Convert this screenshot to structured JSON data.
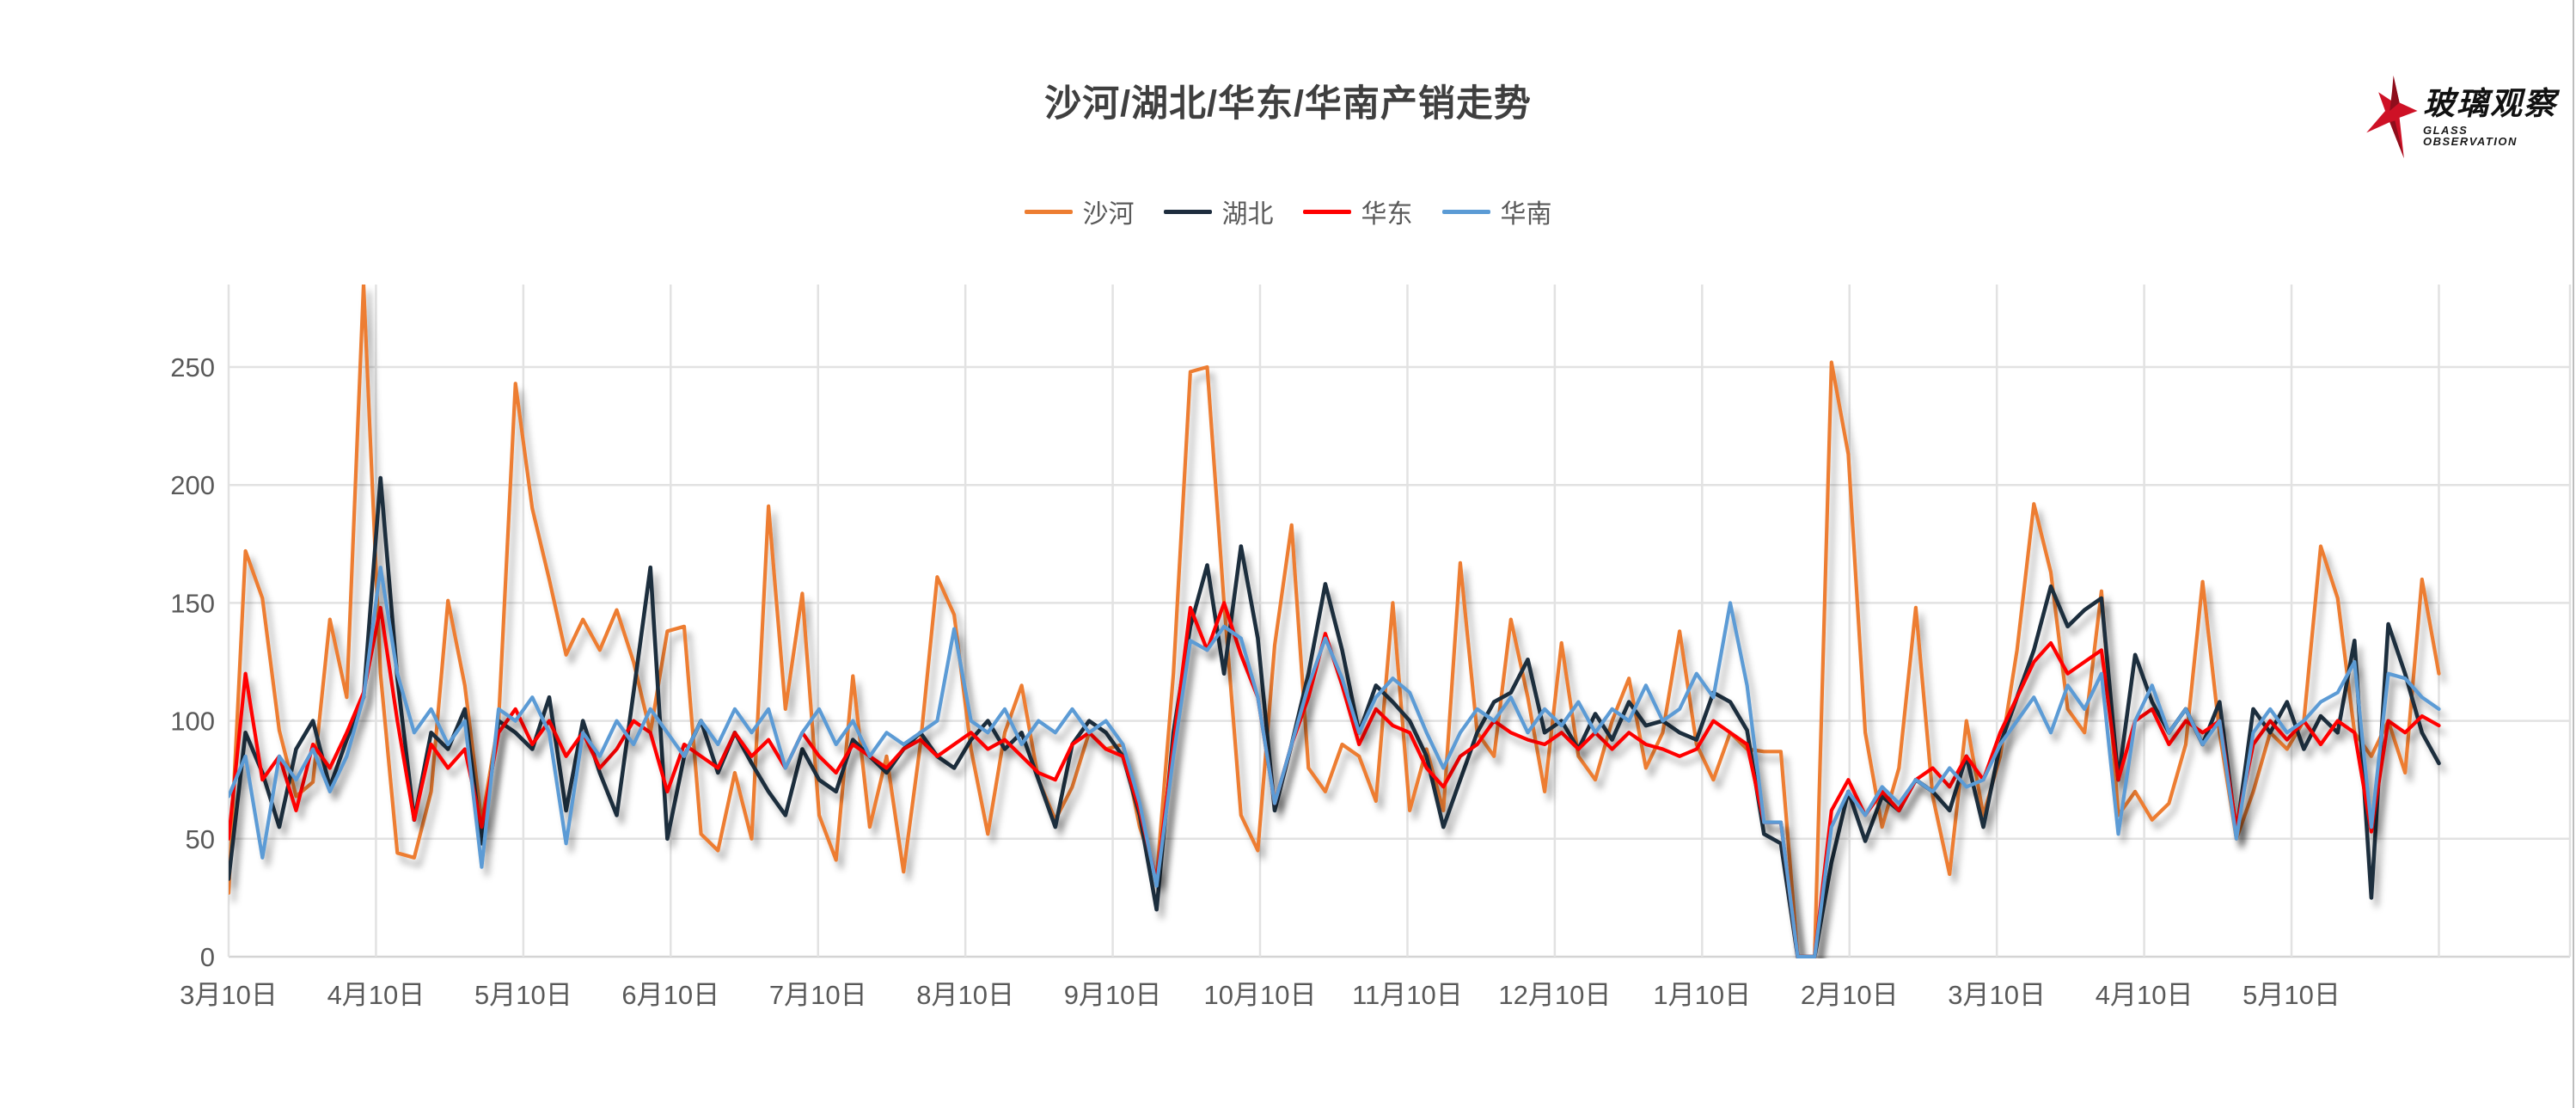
{
  "chart": {
    "title": "沙河/湖北/华东/华南产销走势"
  },
  "logo": {
    "text": "玻璃观察",
    "subtext": "GLASS OBSERVATION",
    "star_color": "#ce1126",
    "star_shade_color": "#8e0e1c"
  },
  "chart_data": {
    "type": "line",
    "title": "沙河/湖北/华东/华南产销走势",
    "xlabel": "",
    "ylabel": "",
    "grid": true,
    "legend_position": "top",
    "ylim": [
      0,
      285
    ],
    "yticks": [
      "0",
      "50",
      "100",
      "150",
      "200",
      "250"
    ],
    "x_tick_labels": [
      "3月10日",
      "4月10日",
      "5月10日",
      "6月10日",
      "7月10日",
      "8月10日",
      "9月10日",
      "10月10日",
      "11月10日",
      "12月10日",
      "1月10日",
      "2月10日",
      "3月10日",
      "4月10日",
      "5月10日"
    ],
    "colors": {
      "grid": "#e2e2e2",
      "axis": "#d4d4d4",
      "tick_text": "#595959",
      "title_text": "#3f3f3f"
    },
    "points_per_series": 132,
    "series": [
      {
        "name": "沙河",
        "color": "#ED7D31",
        "values": [
          27,
          172,
          152,
          96,
          68,
          74,
          143,
          110,
          285,
          120,
          44,
          42,
          70,
          151,
          115,
          57,
          100,
          243,
          190,
          160,
          128,
          143,
          130,
          147,
          125,
          95,
          138,
          140,
          52,
          45,
          78,
          50,
          191,
          105,
          154,
          60,
          41,
          119,
          55,
          85,
          36,
          90,
          161,
          145,
          88,
          52,
          95,
          115,
          75,
          58,
          72,
          95,
          88,
          90,
          55,
          33,
          120,
          248,
          250,
          150,
          60,
          45,
          132,
          183,
          80,
          70,
          90,
          85,
          66,
          150,
          62,
          88,
          62,
          167,
          95,
          85,
          143,
          110,
          70,
          133,
          85,
          75,
          100,
          118,
          80,
          95,
          138,
          90,
          75,
          95,
          88,
          87,
          87,
          0,
          0,
          252,
          213,
          95,
          55,
          80,
          148,
          68,
          35,
          100,
          60,
          85,
          130,
          192,
          163,
          105,
          95,
          155,
          60,
          70,
          58,
          65,
          90,
          159,
          95,
          50,
          70,
          95,
          88,
          100,
          174,
          152,
          95,
          85,
          100,
          78,
          160,
          120
        ]
      },
      {
        "name": "湖北",
        "color": "#1E2D3E",
        "values": [
          33,
          95,
          78,
          55,
          88,
          100,
          72,
          92,
          110,
          203,
          118,
          58,
          95,
          88,
          105,
          48,
          100,
          95,
          88,
          110,
          62,
          100,
          78,
          60,
          112,
          165,
          50,
          85,
          100,
          78,
          95,
          82,
          70,
          60,
          88,
          75,
          70,
          92,
          85,
          78,
          88,
          95,
          85,
          80,
          92,
          100,
          88,
          95,
          75,
          55,
          90,
          100,
          95,
          85,
          60,
          20,
          95,
          140,
          166,
          120,
          174,
          135,
          62,
          90,
          120,
          158,
          130,
          95,
          115,
          108,
          100,
          85,
          55,
          75,
          95,
          108,
          112,
          126,
          95,
          100,
          88,
          103,
          92,
          108,
          98,
          100,
          95,
          92,
          112,
          108,
          96,
          52,
          48,
          0,
          0,
          40,
          70,
          49,
          68,
          62,
          75,
          70,
          62,
          85,
          55,
          90,
          110,
          130,
          157,
          140,
          147,
          152,
          75,
          128,
          108,
          95,
          105,
          90,
          108,
          52,
          105,
          95,
          108,
          88,
          102,
          95,
          134,
          25,
          141,
          120,
          95,
          82
        ]
      },
      {
        "name": "华东",
        "color": "#FF0000",
        "values": [
          50,
          120,
          75,
          85,
          62,
          90,
          80,
          95,
          112,
          148,
          100,
          58,
          90,
          80,
          88,
          55,
          95,
          105,
          90,
          100,
          85,
          95,
          80,
          88,
          100,
          95,
          70,
          90,
          85,
          80,
          95,
          85,
          92,
          80,
          95,
          85,
          78,
          90,
          85,
          80,
          88,
          92,
          85,
          90,
          95,
          88,
          92,
          85,
          78,
          75,
          90,
          95,
          88,
          85,
          62,
          32,
          90,
          148,
          130,
          150,
          128,
          110,
          65,
          90,
          110,
          137,
          115,
          90,
          105,
          98,
          95,
          80,
          72,
          85,
          90,
          100,
          95,
          92,
          90,
          95,
          88,
          95,
          88,
          95,
          90,
          88,
          85,
          88,
          100,
          95,
          90,
          57,
          57,
          0,
          0,
          62,
          75,
          60,
          70,
          62,
          75,
          80,
          72,
          85,
          75,
          95,
          110,
          125,
          133,
          120,
          125,
          130,
          75,
          100,
          105,
          90,
          100,
          95,
          100,
          55,
          90,
          100,
          92,
          100,
          90,
          100,
          95,
          53,
          100,
          95,
          102,
          98
        ]
      },
      {
        "name": "华南",
        "color": "#5B9BD5",
        "values": [
          68,
          85,
          42,
          85,
          75,
          88,
          70,
          85,
          110,
          165,
          120,
          95,
          105,
          90,
          100,
          38,
          105,
          100,
          110,
          95,
          48,
          95,
          85,
          100,
          90,
          105,
          95,
          85,
          100,
          90,
          105,
          95,
          105,
          80,
          95,
          105,
          90,
          100,
          85,
          95,
          90,
          95,
          100,
          139,
          100,
          95,
          105,
          90,
          100,
          95,
          105,
          95,
          100,
          90,
          65,
          30,
          85,
          134,
          130,
          140,
          135,
          110,
          65,
          90,
          115,
          135,
          118,
          95,
          110,
          118,
          112,
          95,
          80,
          95,
          105,
          100,
          110,
          95,
          105,
          98,
          108,
          95,
          105,
          100,
          115,
          100,
          105,
          120,
          110,
          150,
          115,
          57,
          57,
          0,
          0,
          55,
          70,
          60,
          72,
          65,
          75,
          70,
          80,
          72,
          75,
          90,
          100,
          110,
          95,
          115,
          105,
          120,
          52,
          100,
          115,
          95,
          105,
          90,
          100,
          50,
          95,
          105,
          95,
          100,
          108,
          112,
          125,
          55,
          120,
          118,
          110,
          105
        ]
      }
    ]
  }
}
